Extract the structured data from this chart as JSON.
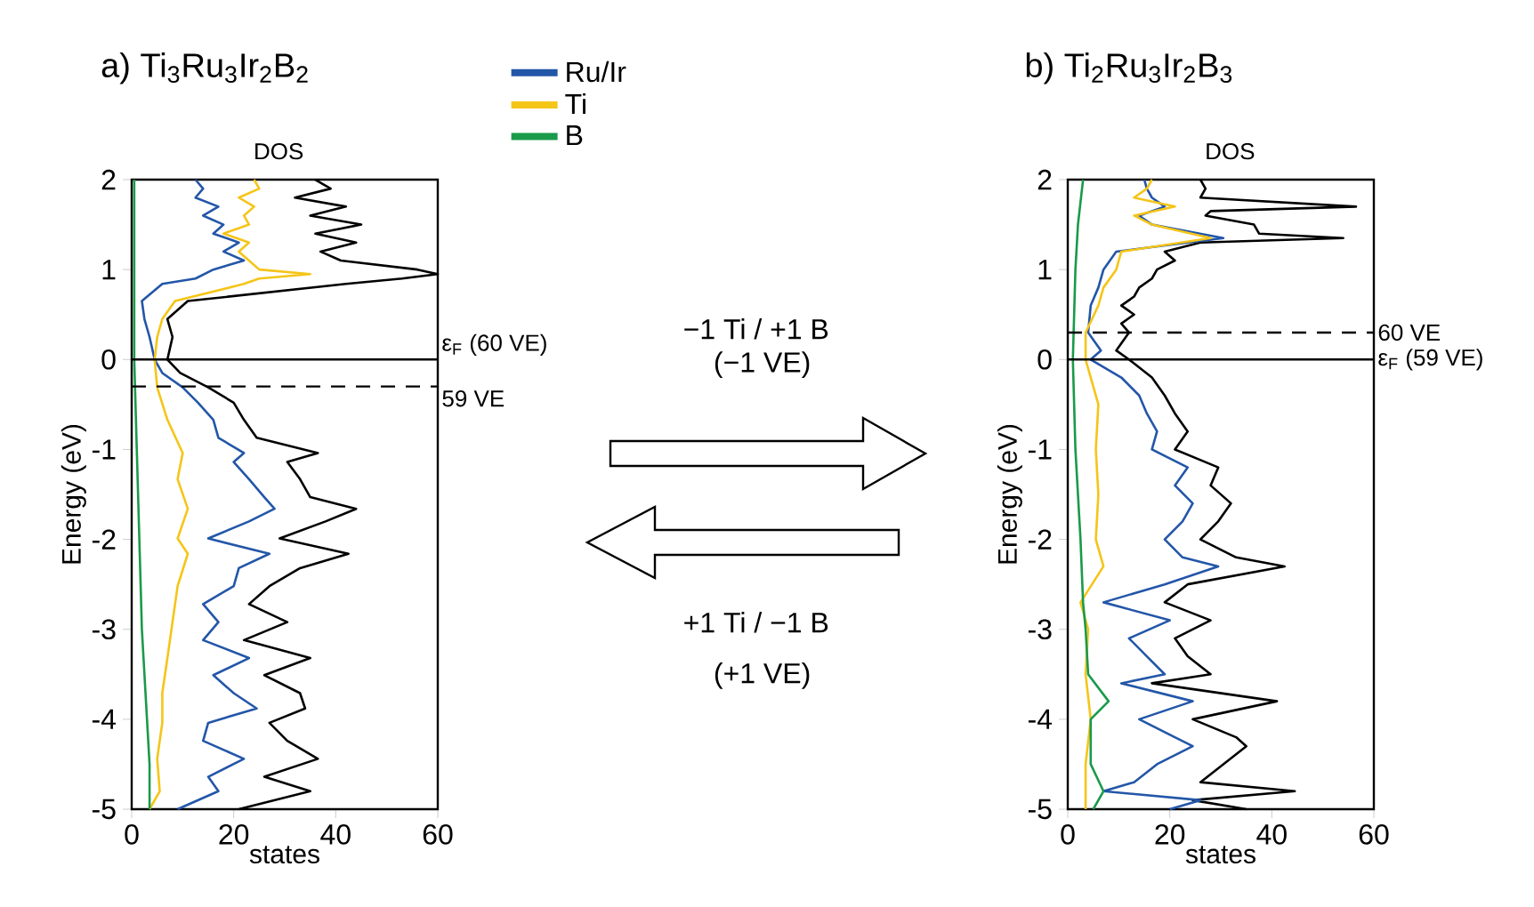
{
  "chart_data": [
    {
      "type": "line",
      "title": "a) Ti$_{3}$Ru$_{3}$Ir$_{2}$B$_{2}$",
      "subtitle": "DOS",
      "xlabel": "states",
      "ylabel": "Energy (eV)",
      "xlim": [
        0,
        60
      ],
      "ylim": [
        -5,
        2
      ],
      "xticks": [
        0,
        20,
        40,
        60
      ],
      "yticks": [
        -5,
        -4,
        -3,
        -2,
        -1,
        0,
        1,
        2
      ],
      "legend": "top right",
      "ref_lines": [
        {
          "axis": "y",
          "value": 0,
          "label": "ε$_{F}$ (60 VE)",
          "line_style": "solid"
        },
        {
          "axis": "y",
          "value": -0.3,
          "label": "59 VE",
          "line_style": "dashed"
        }
      ],
      "annotations": [
        "−1 Ti / +1 B",
        "(−1 VE)",
        "+1 Ti / −1 B",
        "(+1 VE)"
      ],
      "series": [
        {
          "color": "#000000",
          "x": [
            36,
            39,
            32,
            42,
            35,
            45,
            36,
            44,
            37,
            41,
            56,
            60,
            53,
            42,
            11,
            7,
            8,
            7,
            9.5,
            15,
            20,
            22,
            24.5,
            36.5,
            30.5,
            33,
            35,
            44,
            38,
            29,
            42.5,
            33,
            27,
            23,
            30.5,
            22,
            35,
            26,
            33,
            34,
            27,
            30.5,
            36.5,
            26,
            35,
            21
          ],
          "values": [
            2,
            1.9,
            1.8,
            1.7,
            1.6,
            1.5,
            1.4,
            1.3,
            1.2,
            1.1,
            1.0,
            0.95,
            0.9,
            0.84,
            0.65,
            0.45,
            0.25,
            0,
            -0.15,
            -0.31,
            -0.48,
            -0.67,
            -0.87,
            -1.04,
            -1.14,
            -1.33,
            -1.53,
            -1.66,
            -1.8,
            -1.99,
            -2.16,
            -2.32,
            -2.52,
            -2.72,
            -2.92,
            -3.12,
            -3.32,
            -3.51,
            -3.71,
            -3.88,
            -4.04,
            -4.24,
            -4.44,
            -4.64,
            -4.8,
            -5
          ]
        },
        {
          "name": "Ru/Ir",
          "color": "#2356a8",
          "x": [
            12.5,
            14,
            12.5,
            17,
            14,
            18,
            16,
            21,
            18,
            22,
            16,
            12.5,
            6,
            2,
            2.5,
            3.5,
            4.5,
            6,
            10,
            13,
            16,
            17,
            22,
            20,
            23,
            26,
            28,
            23,
            15,
            27,
            21,
            20,
            14,
            17,
            14,
            23,
            16,
            20,
            24.5,
            15,
            14,
            22,
            15,
            17,
            9
          ],
          "values": [
            2,
            1.9,
            1.8,
            1.7,
            1.6,
            1.5,
            1.4,
            1.3,
            1.2,
            1.1,
            1.0,
            0.9,
            0.84,
            0.65,
            0.45,
            0.25,
            0,
            -0.15,
            -0.31,
            -0.48,
            -0.67,
            -0.87,
            -1.04,
            -1.14,
            -1.33,
            -1.53,
            -1.66,
            -1.8,
            -1.99,
            -2.16,
            -2.32,
            -2.52,
            -2.72,
            -2.92,
            -3.12,
            -3.32,
            -3.51,
            -3.71,
            -3.88,
            -4.04,
            -4.24,
            -4.44,
            -4.64,
            -4.8,
            -5
          ]
        },
        {
          "name": "Ti",
          "color": "#f5c518",
          "x": [
            24,
            25,
            21,
            24,
            22,
            23,
            18,
            23,
            21,
            23,
            25,
            35,
            25,
            22,
            8.5,
            6,
            5,
            4.5,
            5,
            7,
            10,
            9,
            11,
            9,
            11,
            9,
            8,
            7,
            6,
            6,
            5,
            5.5,
            3.5
          ],
          "values": [
            2,
            1.9,
            1.8,
            1.7,
            1.6,
            1.5,
            1.4,
            1.3,
            1.2,
            1.1,
            1.0,
            0.95,
            0.9,
            0.84,
            0.65,
            0.45,
            0.25,
            0,
            -0.31,
            -0.67,
            -1.04,
            -1.33,
            -1.66,
            -1.99,
            -2.16,
            -2.52,
            -2.92,
            -3.32,
            -3.71,
            -4.04,
            -4.44,
            -4.8,
            -5
          ]
        },
        {
          "name": "B",
          "color": "#1a9a4a",
          "x": [
            0.5,
            0.5,
            0.5,
            1,
            1.5,
            2,
            3,
            3.5,
            3.5
          ],
          "values": [
            2,
            1,
            0,
            -1,
            -2,
            -3,
            -4,
            -4.5,
            -5
          ]
        }
      ]
    },
    {
      "type": "line",
      "title": "b) Ti$_{2}$Ru$_{3}$Ir$_{2}$B$_{3}$",
      "subtitle": "DOS",
      "xlabel": "states",
      "ylabel": "Energy (eV)",
      "xlim": [
        0,
        60
      ],
      "ylim": [
        -5,
        2
      ],
      "xticks": [
        0,
        20,
        40,
        60
      ],
      "yticks": [
        -5,
        -4,
        -3,
        -2,
        -1,
        0,
        1,
        2
      ],
      "ref_lines": [
        {
          "axis": "y",
          "value": 0.3,
          "label": "60 VE",
          "line_style": "dashed"
        },
        {
          "axis": "y",
          "value": 0,
          "label": "ε$_{F}$ (59 VE)",
          "line_style": "solid"
        }
      ],
      "series": [
        {
          "color": "#000000",
          "x": [
            26,
            27,
            26,
            56.5,
            28,
            27,
            36.5,
            37.5,
            54,
            26,
            19,
            21,
            17.5,
            16.5,
            14,
            13,
            10.5,
            13,
            10.5,
            12,
            9.5,
            12,
            16.5,
            19,
            21,
            23.5,
            21,
            29.5,
            28,
            32,
            29.5,
            26,
            33,
            42.5,
            23.5,
            19,
            28,
            21,
            23.5,
            28,
            16.5,
            41,
            24.5,
            33,
            35,
            30.5,
            26,
            44.5,
            24.5,
            35
          ],
          "values": [
            2,
            1.9,
            1.8,
            1.7,
            1.65,
            1.6,
            1.5,
            1.4,
            1.35,
            1.3,
            1.2,
            1.1,
            1.0,
            0.9,
            0.8,
            0.7,
            0.6,
            0.5,
            0.4,
            0.3,
            0.1,
            0,
            -0.2,
            -0.4,
            -0.6,
            -0.8,
            -1,
            -1.2,
            -1.4,
            -1.6,
            -1.8,
            -2,
            -2.2,
            -2.3,
            -2.5,
            -2.7,
            -2.9,
            -3.1,
            -3.3,
            -3.5,
            -3.6,
            -3.8,
            -4,
            -4.2,
            -4.3,
            -4.5,
            -4.7,
            -4.8,
            -4.9,
            -5
          ]
        },
        {
          "color": "#2356a8",
          "x": [
            15,
            15.5,
            16.5,
            19,
            14,
            16.5,
            30.5,
            9.5,
            7,
            6,
            4.5,
            4,
            6.5,
            4.5,
            10.5,
            14,
            15.5,
            17.5,
            16.5,
            23.5,
            21,
            24.5,
            22.5,
            19,
            22.5,
            29.5,
            19,
            7,
            20,
            12,
            15.5,
            19,
            10.5,
            24.5,
            14,
            21,
            24.5,
            17.5,
            13,
            7,
            26,
            20
          ],
          "values": [
            2,
            1.9,
            1.8,
            1.7,
            1.6,
            1.5,
            1.35,
            1.2,
            1.0,
            0.8,
            0.6,
            0.3,
            0.1,
            0,
            -0.2,
            -0.4,
            -0.6,
            -0.8,
            -1,
            -1.2,
            -1.4,
            -1.6,
            -1.8,
            -2,
            -2.2,
            -2.3,
            -2.5,
            -2.7,
            -2.9,
            -3.1,
            -3.3,
            -3.5,
            -3.6,
            -3.8,
            -4,
            -4.2,
            -4.3,
            -4.5,
            -4.7,
            -4.8,
            -4.9,
            -5
          ]
        },
        {
          "color": "#f5c518",
          "x": [
            16.5,
            15.5,
            13,
            21,
            13,
            16.5,
            28,
            10.5,
            9.5,
            7,
            6,
            3.5,
            3.5,
            6,
            5.5,
            6,
            5.5,
            7,
            2.5,
            4,
            3.5,
            4.5,
            3.5,
            3.5
          ],
          "values": [
            2,
            1.9,
            1.8,
            1.7,
            1.6,
            1.5,
            1.35,
            1.2,
            1.0,
            0.8,
            0.6,
            0.3,
            0,
            -0.5,
            -1,
            -1.5,
            -2,
            -2.3,
            -2.7,
            -3,
            -3.5,
            -4,
            -4.5,
            -5
          ]
        },
        {
          "color": "#1a9a4a",
          "x": [
            3,
            2,
            1.5,
            1,
            1.5,
            2.5,
            3,
            3.5,
            4,
            8,
            4.5,
            4.5,
            7,
            5
          ],
          "values": [
            2,
            1.5,
            1,
            0,
            -1,
            -2,
            -2.7,
            -3,
            -3.5,
            -3.8,
            -4,
            -4.5,
            -4.8,
            -5
          ]
        }
      ]
    }
  ]
}
